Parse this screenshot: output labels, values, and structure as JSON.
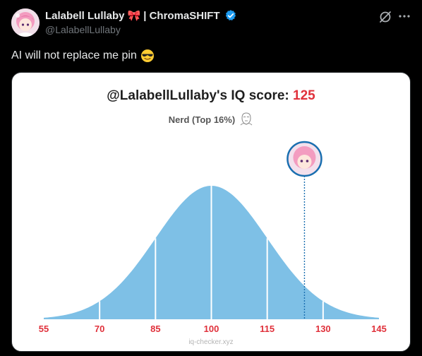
{
  "post": {
    "display_name": "Lalabell Lullaby",
    "separator_text": "| ChromaSHIFT",
    "handle": "@LalabellLullaby",
    "text": "AI will not replace me pin"
  },
  "icons": {
    "ribbon": "ribbon-emoji-icon",
    "verified": "verified-badge-icon",
    "grok": "grok-icon",
    "more": "more-icon",
    "cool": "smiling-face-with-sunglasses-icon"
  },
  "colors": {
    "accent_red": "#e0313b",
    "curve_fill": "#7ec0e6",
    "verified_blue": "#1d9bf0"
  },
  "card": {
    "title_prefix": "@LalabellLullaby's IQ score:",
    "score": "125",
    "subtitle": "Nerd (Top 16%)",
    "footer": "iq-checker.xyz"
  },
  "chart_data": {
    "type": "area",
    "title": "@LalabellLullaby's IQ score: 125",
    "subtitle": "Nerd (Top 16%)",
    "distribution": "normal",
    "mean": 100,
    "sd": 15,
    "xlim": [
      55,
      145
    ],
    "x_ticks": [
      55,
      70,
      85,
      100,
      115,
      130,
      145
    ],
    "marker": {
      "x": 125
    },
    "grid": false
  }
}
